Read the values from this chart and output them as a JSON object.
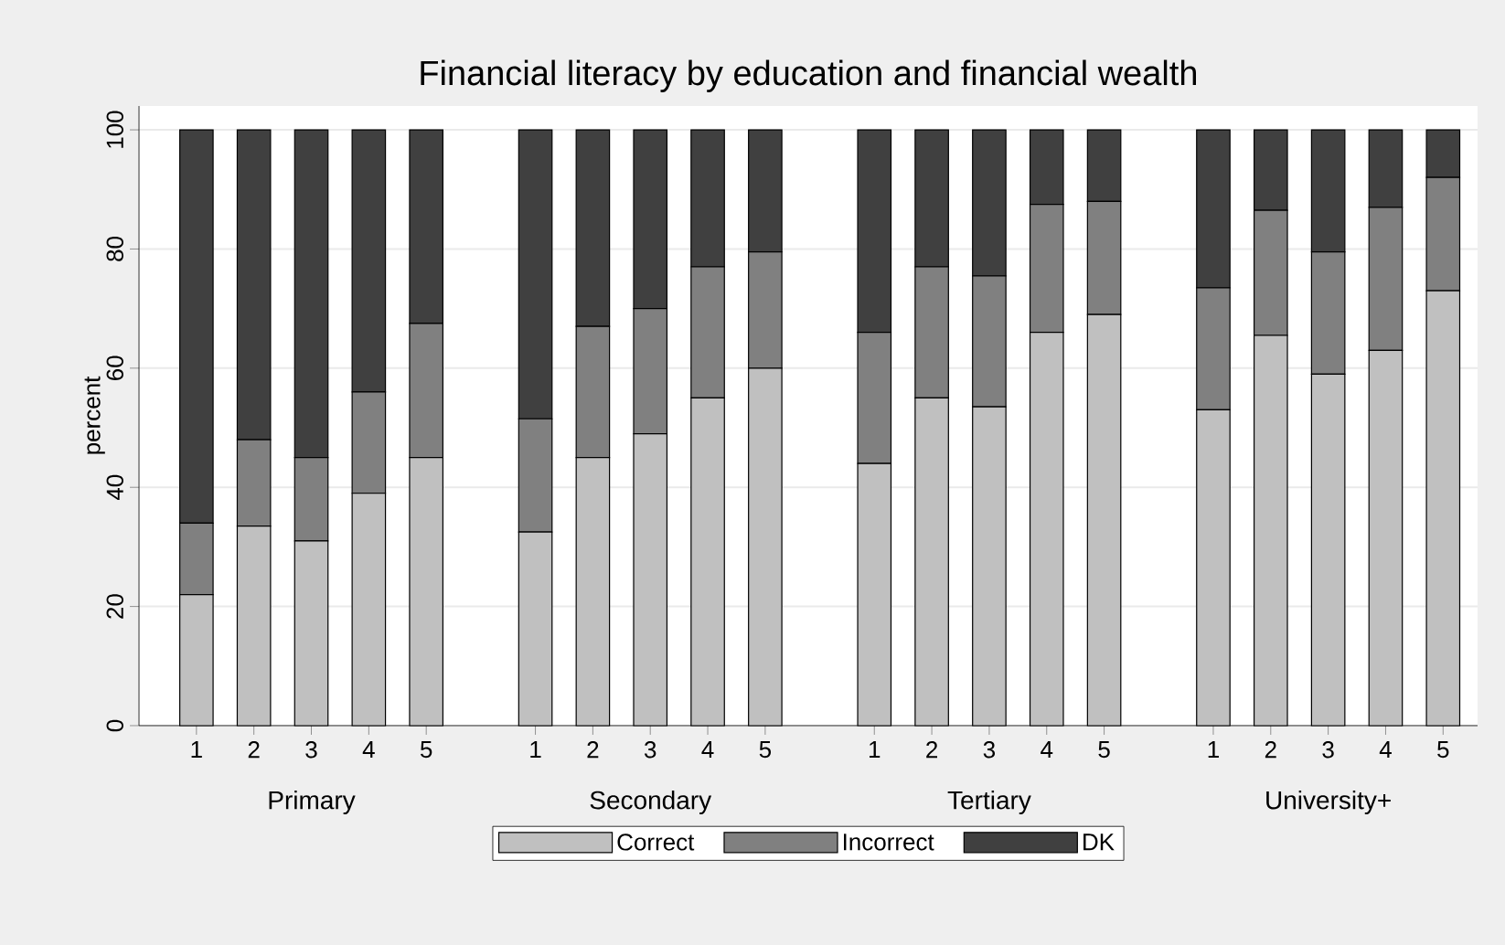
{
  "chart_data": {
    "type": "bar",
    "title": "Financial literacy by education and financial wealth",
    "ylabel": "percent",
    "categories": [
      "1",
      "2",
      "3",
      "4",
      "5",
      "1",
      "2",
      "3",
      "4",
      "5",
      "1",
      "2",
      "3",
      "4",
      "5",
      "1",
      "2",
      "3",
      "4",
      "5"
    ],
    "annotations": [
      "Primary",
      "Secondary",
      "Tertiary",
      "University+"
    ],
    "stacked": true,
    "series": [
      {
        "name": "Correct",
        "color": "#c0c0c0",
        "values": [
          22,
          33.5,
          31,
          39,
          45,
          32.5,
          45,
          49,
          55,
          60,
          44,
          55,
          53.5,
          66,
          69,
          53,
          65.5,
          59,
          63,
          73
        ]
      },
      {
        "name": "Incorrect",
        "color": "#808080",
        "values": [
          12,
          14.5,
          14,
          17,
          22.5,
          19,
          22,
          21,
          22,
          19.5,
          22,
          22,
          22,
          21.5,
          19,
          20.5,
          21,
          20.5,
          24,
          19
        ]
      },
      {
        "name": "DK",
        "color": "#404040",
        "values": [
          66,
          52,
          55,
          44,
          32.5,
          48.5,
          33,
          30,
          23,
          20.5,
          34,
          23,
          24.5,
          12.5,
          12,
          26.5,
          13.5,
          20.5,
          13,
          8
        ]
      }
    ],
    "ylim": [
      0,
      104
    ],
    "yticks": [
      0,
      20,
      40,
      60,
      80,
      100
    ],
    "grid": "y",
    "legend": "bottom"
  }
}
